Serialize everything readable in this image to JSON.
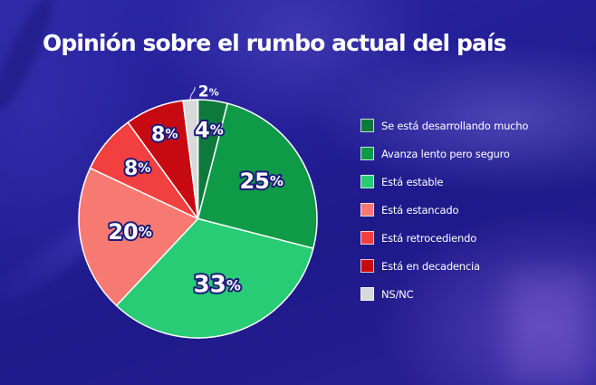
{
  "title": "Opinión sobre el rumbo actual del país",
  "colors": {
    "background": "#221c8e",
    "label_text": "#ffffff",
    "label_outline": "#1c1a7a",
    "slice_separator": "#ffffff"
  },
  "chart_data": {
    "type": "pie",
    "title": "Opinión sobre el rumbo actual del país",
    "start_angle_deg": 0,
    "direction": "clockwise",
    "legend_position": "right",
    "categories": [
      "Se está desarrollando mucho",
      "Avanza lento pero seguro",
      "Está estable",
      "Está estancado",
      "Está retrocediendo",
      "Está en decadencia",
      "NS/NC"
    ],
    "values": [
      4,
      25,
      33,
      20,
      8,
      8,
      2
    ],
    "labels": [
      "4",
      "25",
      "33",
      "20",
      "8",
      "8",
      "2"
    ],
    "unit": "%",
    "colors": [
      "#0d7a3c",
      "#0f9a48",
      "#28cc74",
      "#f77a72",
      "#f1403f",
      "#c70a12",
      "#d9d9d9"
    ]
  },
  "legend": {
    "items": [
      {
        "label": "Se está desarrollando mucho",
        "color": "#0d7a3c"
      },
      {
        "label": "Avanza lento pero seguro",
        "color": "#0f9a48"
      },
      {
        "label": "Está estable",
        "color": "#28cc74"
      },
      {
        "label": "Está estancado",
        "color": "#f77a72"
      },
      {
        "label": "Está retrocediendo",
        "color": "#f1403f"
      },
      {
        "label": "Está en decadencia",
        "color": "#c70a12"
      },
      {
        "label": "NS/NC",
        "color": "#d9d9d9"
      }
    ]
  }
}
